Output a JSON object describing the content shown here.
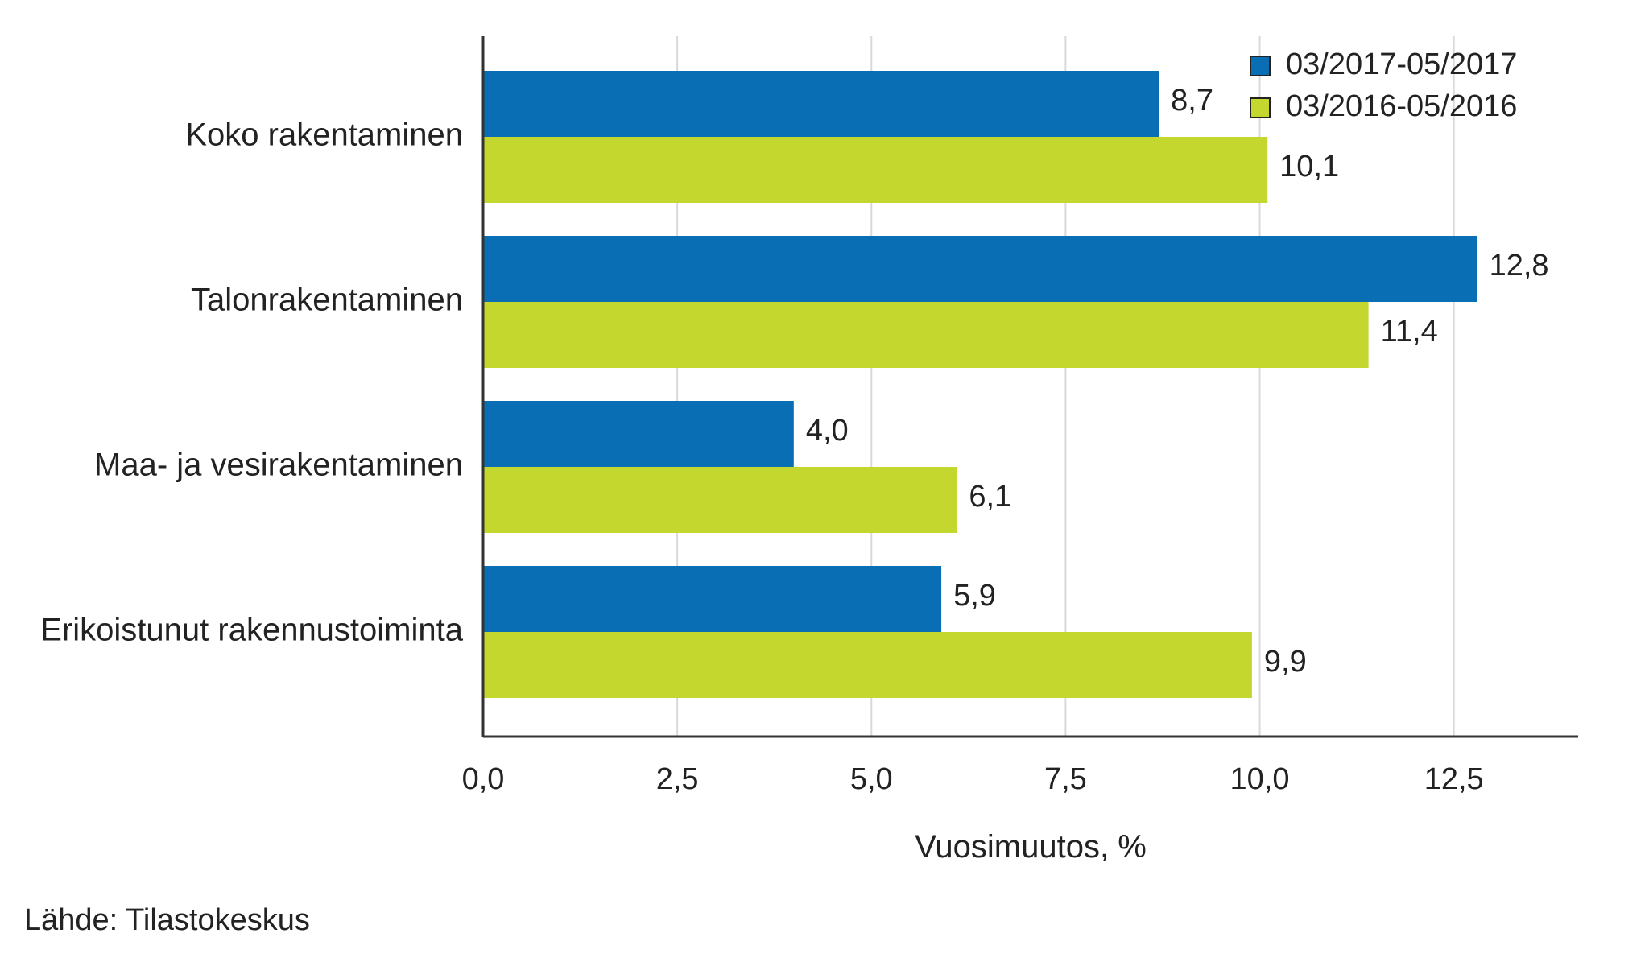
{
  "chart_data": {
    "type": "bar",
    "orientation": "horizontal",
    "categories": [
      "Koko rakentaminen",
      "Talonrakentaminen",
      "Maa- ja vesirakentaminen",
      "Erikoistunut rakennustoiminta"
    ],
    "series": [
      {
        "name": "03/2017-05/2017",
        "color": "#0a6eb4",
        "values": [
          8.7,
          12.8,
          4.0,
          5.9
        ],
        "labels": [
          "8,7",
          "12,8",
          "4,0",
          "5,9"
        ]
      },
      {
        "name": "03/2016-05/2016",
        "color": "#c3d72e",
        "values": [
          10.1,
          11.4,
          6.1,
          9.9
        ],
        "labels": [
          "10,1",
          "11,4",
          "6,1",
          "9,9"
        ]
      }
    ],
    "xlabel": "Vuosimuutos, %",
    "xlim": [
      0,
      14.1
    ],
    "xticks": [
      0,
      2.5,
      5,
      7.5,
      10,
      12.5
    ],
    "xtick_labels": [
      "0,0",
      "2,5",
      "5,0",
      "7,5",
      "10,0",
      "12,5"
    ],
    "grid": true,
    "legend": "top-right"
  },
  "source": "Lähde: Tilastokeskus"
}
